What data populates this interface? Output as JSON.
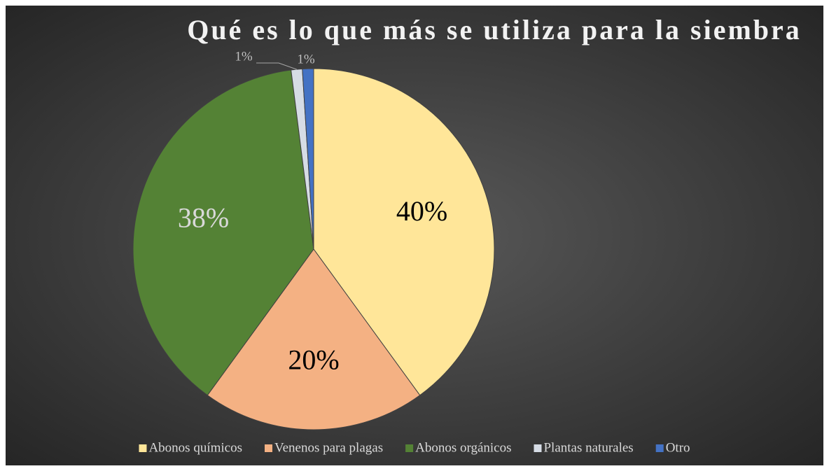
{
  "chart_data": {
    "type": "pie",
    "title": "Qué es lo que más se utiliza para la siembra",
    "categories": [
      "Abonos químicos",
      "Venenos para plagas",
      "Abonos orgánicos",
      "Plantas naturales",
      "Otro"
    ],
    "values": [
      40,
      20,
      38,
      1,
      1
    ],
    "value_labels": [
      "40%",
      "20%",
      "38%",
      "1%",
      "1%"
    ],
    "colors": [
      "#ffe699",
      "#f4b183",
      "#548235",
      "#d6dce5",
      "#4472c4"
    ],
    "legend": "bottom"
  }
}
